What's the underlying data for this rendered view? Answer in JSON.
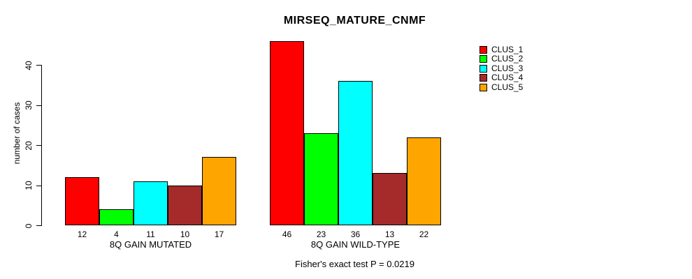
{
  "chart_data": {
    "type": "bar",
    "title": "MIRSEQ_MATURE_CNMF",
    "xlabel": "",
    "ylabel": "number of cases",
    "yticks": [
      0,
      10,
      20,
      30,
      40
    ],
    "ylim": [
      0,
      46
    ],
    "grid": false,
    "legend_position": "right",
    "bar_value_labels_shown": true,
    "categories": [
      "8Q GAIN MUTATED",
      "8Q GAIN WILD-TYPE"
    ],
    "series": [
      {
        "name": "CLUS_1",
        "color": "#ff0000",
        "values": [
          12,
          46
        ]
      },
      {
        "name": "CLUS_2",
        "color": "#00ff00",
        "values": [
          4,
          23
        ]
      },
      {
        "name": "CLUS_3",
        "color": "#00ffff",
        "values": [
          11,
          36
        ]
      },
      {
        "name": "CLUS_4",
        "color": "#a52a2a",
        "values": [
          10,
          13
        ]
      },
      {
        "name": "CLUS_5",
        "color": "#ffa500",
        "values": [
          17,
          22
        ]
      }
    ],
    "annotation": "Fisher's exact test P = 0.0219",
    "colors": {
      "background": "#ffffff",
      "axis": "#000000",
      "bar_border": "#000000"
    }
  }
}
